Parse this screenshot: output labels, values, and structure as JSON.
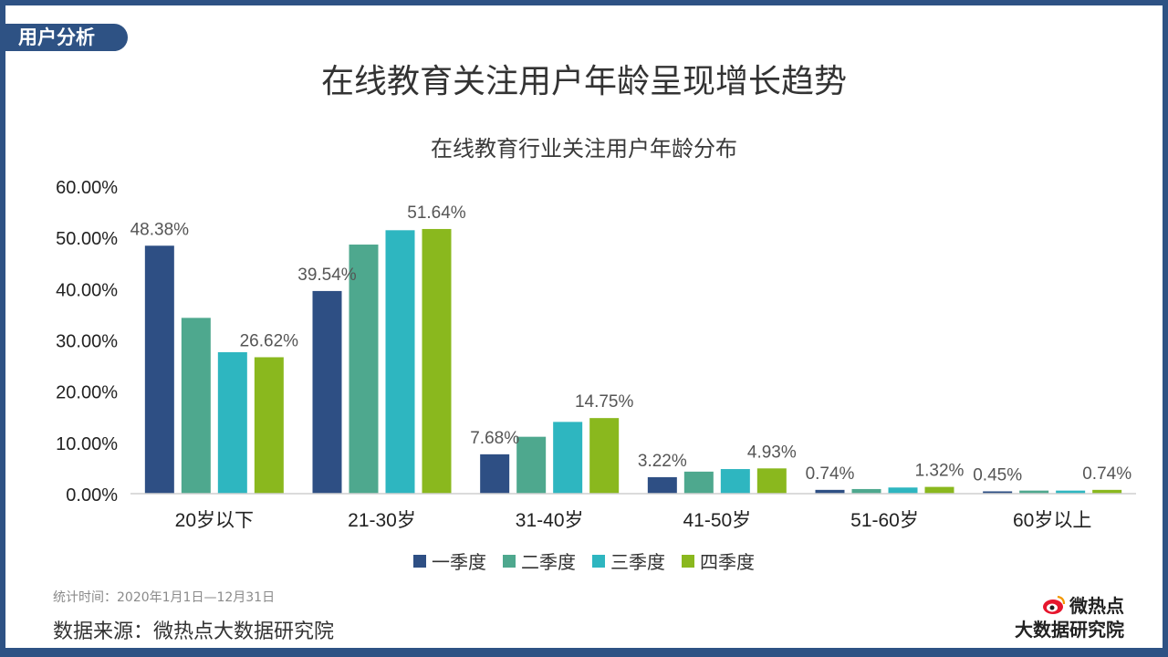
{
  "section_tab": "用户分析",
  "page_title": "在线教育关注用户年龄呈现增长趋势",
  "footer": {
    "stat_time": "统计时间：2020年1月1日—12月31日",
    "source": "数据来源：微热点大数据研究院"
  },
  "logo": {
    "line1": "微热点",
    "line2": "大数据研究院",
    "icon": "weibo-eye-icon"
  },
  "colors": {
    "frame": "#2e5284",
    "series": [
      "#2e4f84",
      "#4ea88e",
      "#2eb6c0",
      "#8ab81e"
    ]
  },
  "chart_data": {
    "type": "bar",
    "title": "在线教育行业关注用户年龄分布",
    "categories": [
      "20岁以下",
      "21-30岁",
      "31-40岁",
      "41-50岁",
      "51-60岁",
      "60岁以上"
    ],
    "series": [
      {
        "name": "一季度",
        "values": [
          48.38,
          39.54,
          7.68,
          3.22,
          0.74,
          0.45
        ]
      },
      {
        "name": "二季度",
        "values": [
          34.3,
          48.6,
          11.1,
          4.3,
          0.9,
          0.6
        ]
      },
      {
        "name": "三季度",
        "values": [
          27.6,
          51.4,
          14.0,
          4.8,
          1.2,
          0.6
        ]
      },
      {
        "name": "四季度",
        "values": [
          26.62,
          51.64,
          14.75,
          4.93,
          1.32,
          0.74
        ]
      }
    ],
    "data_labels": [
      {
        "series": 0,
        "category": 0,
        "text": "48.38%"
      },
      {
        "series": 3,
        "category": 0,
        "text": "26.62%"
      },
      {
        "series": 0,
        "category": 1,
        "text": "39.54%"
      },
      {
        "series": 3,
        "category": 1,
        "text": "51.64%"
      },
      {
        "series": 0,
        "category": 2,
        "text": "7.68%"
      },
      {
        "series": 3,
        "category": 2,
        "text": "14.75%"
      },
      {
        "series": 0,
        "category": 3,
        "text": "3.22%"
      },
      {
        "series": 3,
        "category": 3,
        "text": "4.93%"
      },
      {
        "series": 0,
        "category": 4,
        "text": "0.74%"
      },
      {
        "series": 3,
        "category": 4,
        "text": "1.32%"
      },
      {
        "series": 0,
        "category": 5,
        "text": "0.45%"
      },
      {
        "series": 3,
        "category": 5,
        "text": "0.74%"
      }
    ],
    "y_ticks": [
      "0.00%",
      "10.00%",
      "20.00%",
      "30.00%",
      "40.00%",
      "50.00%",
      "60.00%"
    ],
    "ylim": [
      0,
      60
    ],
    "legend_position": "bottom",
    "grid": false
  }
}
